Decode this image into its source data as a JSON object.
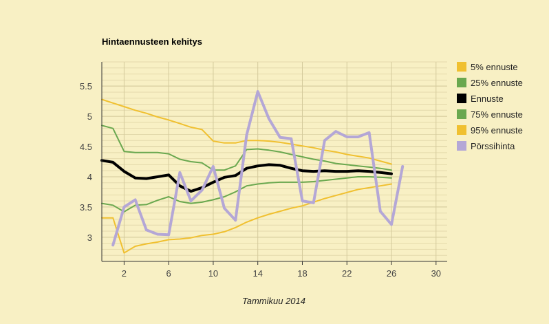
{
  "chart_data": {
    "type": "line",
    "title": "Hintaennusteen kehitys",
    "xlabel": "Tammikuu 2014",
    "ylabel": "",
    "xlim": [
      0,
      31
    ],
    "ylim": [
      2.6,
      5.9
    ],
    "xticks": [
      2,
      6,
      10,
      14,
      18,
      22,
      26,
      30
    ],
    "yticks": [
      3,
      3.5,
      4,
      4.5,
      5,
      5.5
    ],
    "grid": true,
    "legend_position": "right",
    "series": [
      {
        "name": "5% ennuste",
        "color": "#f0c030",
        "width": 2,
        "x": [
          0,
          1,
          2,
          3,
          4,
          5,
          6,
          7,
          8,
          9,
          10,
          11,
          12,
          13,
          14,
          15,
          16,
          17,
          18,
          19,
          20,
          21,
          22,
          23,
          24,
          25,
          26
        ],
        "values": [
          3.32,
          3.32,
          2.74,
          2.85,
          2.89,
          2.92,
          2.96,
          2.97,
          2.99,
          3.03,
          3.05,
          3.09,
          3.16,
          3.25,
          3.32,
          3.38,
          3.43,
          3.48,
          3.52,
          3.58,
          3.64,
          3.69,
          3.74,
          3.79,
          3.82,
          3.85,
          3.88
        ]
      },
      {
        "name": "25% ennuste",
        "color": "#6aa84f",
        "width": 2,
        "x": [
          0,
          1,
          2,
          3,
          4,
          5,
          6,
          7,
          8,
          9,
          10,
          11,
          12,
          13,
          14,
          15,
          16,
          17,
          18,
          19,
          20,
          21,
          22,
          23,
          24,
          25,
          26
        ],
        "values": [
          3.56,
          3.53,
          3.42,
          3.53,
          3.54,
          3.61,
          3.67,
          3.59,
          3.56,
          3.58,
          3.62,
          3.67,
          3.75,
          3.85,
          3.88,
          3.9,
          3.91,
          3.91,
          3.91,
          3.92,
          3.94,
          3.96,
          3.98,
          4.0,
          4.0,
          3.99,
          3.98
        ]
      },
      {
        "name": "Ennuste",
        "color": "#000000",
        "width": 4,
        "x": [
          0,
          1,
          2,
          3,
          4,
          5,
          6,
          7,
          8,
          9,
          10,
          11,
          12,
          13,
          14,
          15,
          16,
          17,
          18,
          19,
          20,
          21,
          22,
          23,
          24,
          25,
          26
        ],
        "values": [
          4.27,
          4.24,
          4.09,
          3.98,
          3.97,
          4.0,
          4.03,
          3.85,
          3.76,
          3.82,
          3.91,
          3.99,
          4.02,
          4.14,
          4.18,
          4.2,
          4.19,
          4.14,
          4.1,
          4.09,
          4.1,
          4.09,
          4.09,
          4.1,
          4.09,
          4.07,
          4.05
        ]
      },
      {
        "name": "75% ennuste",
        "color": "#6aa84f",
        "width": 2,
        "x": [
          0,
          1,
          2,
          3,
          4,
          5,
          6,
          7,
          8,
          9,
          10,
          11,
          12,
          13,
          14,
          15,
          16,
          17,
          18,
          19,
          20,
          21,
          22,
          23,
          24,
          25,
          26
        ],
        "values": [
          4.85,
          4.8,
          4.42,
          4.4,
          4.4,
          4.4,
          4.38,
          4.29,
          4.25,
          4.23,
          4.11,
          4.11,
          4.18,
          4.45,
          4.46,
          4.44,
          4.41,
          4.37,
          4.33,
          4.29,
          4.26,
          4.22,
          4.2,
          4.18,
          4.16,
          4.14,
          4.11
        ]
      },
      {
        "name": "95% ennuste",
        "color": "#f0c030",
        "width": 2,
        "x": [
          0,
          1,
          2,
          3,
          4,
          5,
          6,
          7,
          8,
          9,
          10,
          11,
          12,
          13,
          14,
          15,
          16,
          17,
          18,
          19,
          20,
          21,
          22,
          23,
          24,
          25,
          26
        ],
        "values": [
          5.28,
          5.22,
          5.16,
          5.1,
          5.05,
          4.99,
          4.94,
          4.88,
          4.82,
          4.78,
          4.59,
          4.56,
          4.56,
          4.6,
          4.6,
          4.59,
          4.57,
          4.54,
          4.51,
          4.48,
          4.44,
          4.41,
          4.37,
          4.34,
          4.31,
          4.26,
          4.21
        ]
      },
      {
        "name": "Pörssihinta",
        "color": "#b4a7d6",
        "width": 4,
        "x": [
          1,
          2,
          3,
          4,
          5,
          6,
          7,
          8,
          9,
          10,
          11,
          12,
          13,
          14,
          15,
          16,
          17,
          18,
          19,
          20,
          21,
          22,
          23,
          24,
          25,
          26,
          27
        ],
        "values": [
          2.87,
          3.5,
          3.62,
          3.12,
          3.05,
          3.04,
          4.07,
          3.6,
          3.78,
          4.17,
          3.48,
          3.28,
          4.69,
          5.41,
          4.96,
          4.65,
          4.63,
          3.6,
          3.57,
          4.6,
          4.75,
          4.66,
          4.66,
          4.73,
          3.43,
          3.21,
          4.17
        ]
      }
    ]
  }
}
